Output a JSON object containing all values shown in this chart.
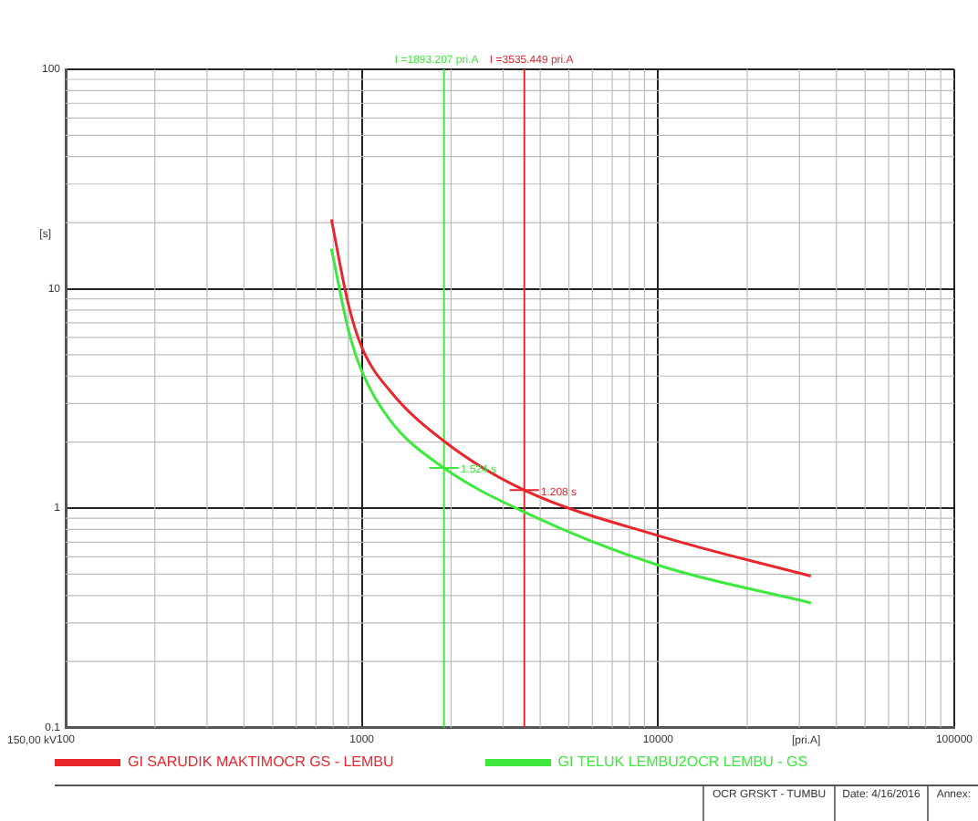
{
  "chart_data": {
    "type": "line",
    "xlabel": "[pri.A]",
    "ylabel": "[s]",
    "log": "xy",
    "grid": true,
    "legend": "bottom",
    "marker": "none",
    "line_style": "solid",
    "xlim": [
      100,
      100000
    ],
    "xticks": [
      100,
      1000,
      10000,
      100000
    ],
    "ylim": [
      0.1,
      100
    ],
    "yticks": [
      0.1,
      1,
      10,
      100
    ],
    "series": [
      {
        "name": "GI SARUDIK MAKTIMOCR GS - LEMBU",
        "color": "#e8262b",
        "x": [
          789,
          900,
          1000,
          1250,
          1950,
          3535,
          10000,
          32800
        ],
        "values": [
          20.7,
          8.5,
          5.4,
          3.4,
          1.96,
          1.208,
          0.75,
          0.49
        ]
      },
      {
        "name": "GI TELUK LEMBU2OCR LEMBU - GS",
        "color": "#3ee83e",
        "x": [
          789,
          900,
          1000,
          1250,
          1893,
          3535,
          10000,
          32800
        ],
        "values": [
          15.2,
          6.5,
          4.2,
          2.5,
          1.524,
          0.96,
          0.55,
          0.37
        ]
      }
    ],
    "ref_lines": [
      {
        "axis": "x",
        "value": 1893.207,
        "label": "I =1893.207 pri.A",
        "color": "#3ee83e"
      },
      {
        "axis": "x",
        "value": 3535.449,
        "label": "I =3535.449 pri.A",
        "color": "#e8262b"
      }
    ],
    "annotations": [
      {
        "text": "1.524 s",
        "x": 1893,
        "y": 1.524
      },
      {
        "text": "1.208 s",
        "x": 3535,
        "y": 1.208
      },
      "150,00 kV",
      "OCR GRSKT - TUMBU",
      "Date: 4/16/2016",
      "Annex:"
    ]
  }
}
